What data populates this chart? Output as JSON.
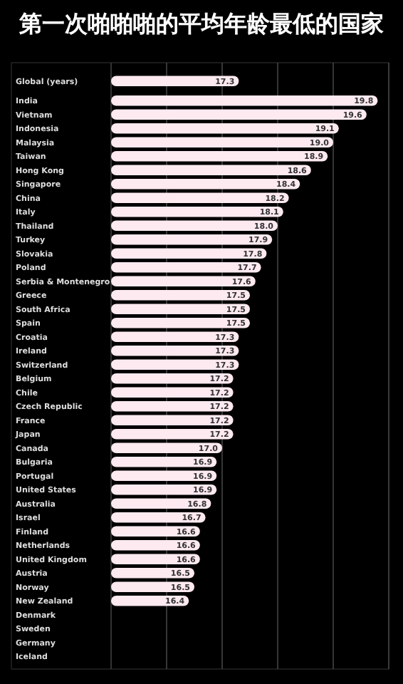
{
  "chart_data": {
    "type": "bar",
    "orientation": "horizontal",
    "title": "第一次啪啪啪的平均年龄最低的国家",
    "categories": [
      "Global (years)",
      "India",
      "Vietnam",
      "Indonesia",
      "Malaysia",
      "Taiwan",
      "Hong Kong",
      "Singapore",
      "China",
      "Italy",
      "Thailand",
      "Turkey",
      "Slovakia",
      "Poland",
      "Serbia & Montenegro",
      "Greece",
      "South Africa",
      "Spain",
      "Croatia",
      "Ireland",
      "Switzerland",
      "Belgium",
      "Chile",
      "Czech Republic",
      "France",
      "Japan",
      "Canada",
      "Bulgaria",
      "Portugal",
      "United States",
      "Australia",
      "Israel",
      "Finland",
      "Netherlands",
      "United Kingdom",
      "Austria",
      "Norway",
      "New Zealand",
      "Denmark",
      "Sweden",
      "Germany",
      "Iceland"
    ],
    "values": [
      17.3,
      19.8,
      19.6,
      19.1,
      19.0,
      18.9,
      18.6,
      18.4,
      18.2,
      18.1,
      18.0,
      17.9,
      17.8,
      17.7,
      17.6,
      17.5,
      17.5,
      17.5,
      17.3,
      17.3,
      17.3,
      17.2,
      17.2,
      17.2,
      17.2,
      17.2,
      17.0,
      16.9,
      16.9,
      16.9,
      16.8,
      16.7,
      16.6,
      16.6,
      16.6,
      16.5,
      16.5,
      16.4,
      null,
      null,
      null,
      null
    ],
    "value_labels": [
      "17.3",
      "19.8",
      "19.6",
      "19.1",
      "19.0",
      "18.9",
      "18.6",
      "18.4",
      "18.2",
      "18.1",
      "18.0",
      "17.9",
      "17.8",
      "17.7",
      "17.6",
      "17.5",
      "17.5",
      "17.5",
      "17.3",
      "17.3",
      "17.3",
      "17.2",
      "17.2",
      "17.2",
      "17.2",
      "17.2",
      "17.0",
      "16.9",
      "16.9",
      "16.9",
      "16.8",
      "16.7",
      "16.6",
      "16.6",
      "16.6",
      "16.5",
      "16.5",
      "16.4",
      null,
      null,
      null,
      null
    ],
    "color": "#fde9f0",
    "xlim": [
      15,
      20
    ],
    "xticks": [
      {
        "value": 16,
        "label": null
      },
      {
        "value": 17,
        "label": null
      },
      {
        "value": 18,
        "label": null
      },
      {
        "value": 19,
        "label": null
      },
      {
        "value": 20,
        "label": null
      }
    ],
    "grid": "x",
    "tick_labels": "y"
  }
}
